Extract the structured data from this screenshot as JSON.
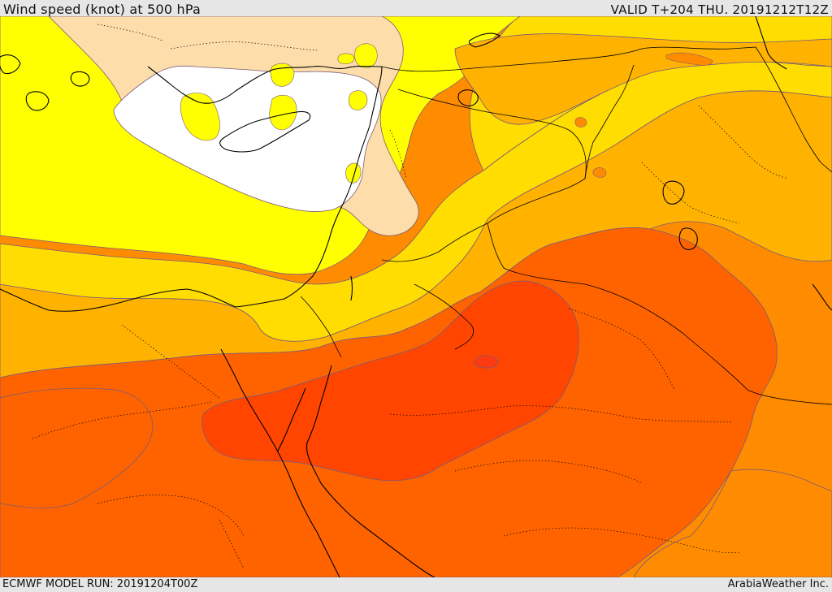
{
  "header": {
    "title": "Wind speed (knot) at 500 hPa",
    "valid": "VALID T+204 THU. 20191212T12Z"
  },
  "footer": {
    "model_run": "ECMWF MODEL RUN: 20191204T00Z",
    "credit": "ArabiaWeather Inc."
  },
  "map": {
    "variable": "wind speed at 500 hPa",
    "shading_colors": {
      "lowest": "#ffffff",
      "pale": "#fddeaa",
      "yellow": "#ffff00",
      "gold": "#ffdd00",
      "amber": "#ffb300",
      "orange": "#ff8c00",
      "deep_orange": "#ff6300",
      "red_orange": "#ff4500",
      "max": "#ff3a10"
    },
    "contour_color": "#7a5a78",
    "coastline_color": "#000000"
  }
}
